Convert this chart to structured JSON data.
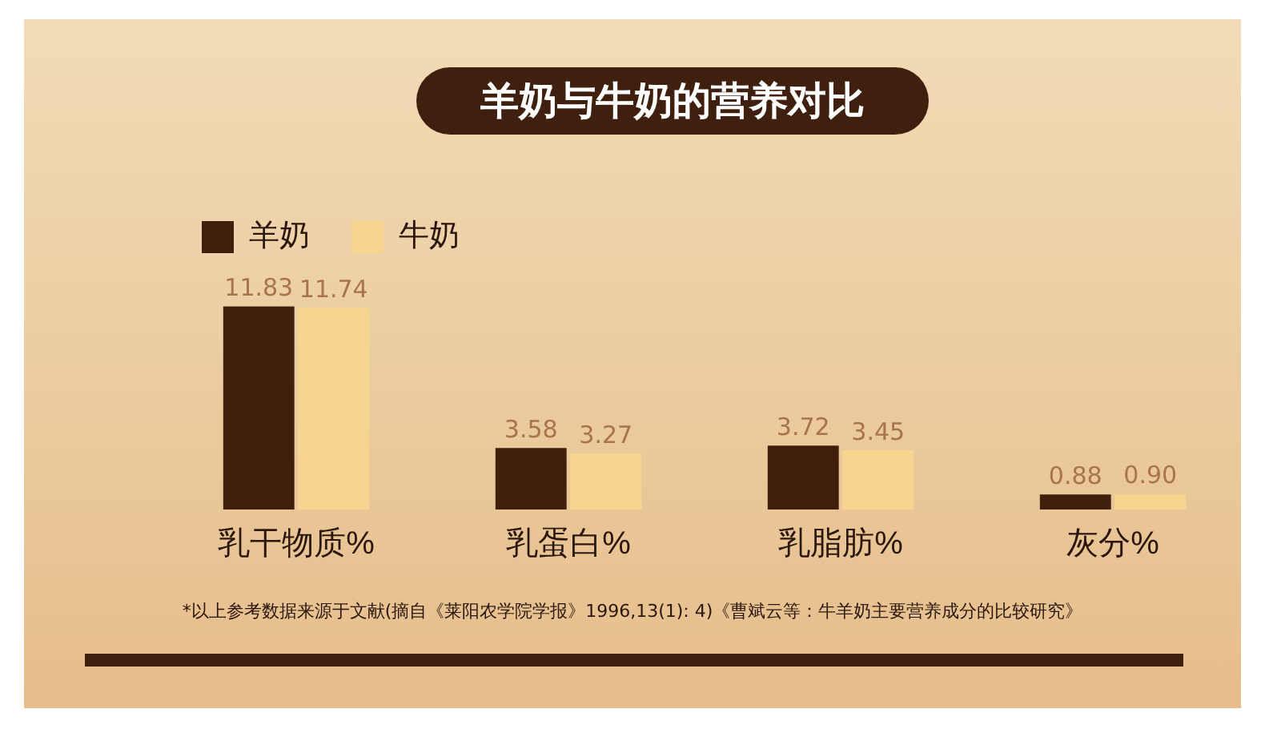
{
  "chart_data": {
    "type": "bar",
    "title": "羊奶与牛奶的营养对比",
    "categories": [
      "乳干物质%",
      "乳蛋白%",
      "乳脂肪%",
      "灰分%"
    ],
    "series": [
      {
        "name": "羊奶",
        "color": "#40200c",
        "values": [
          11.83,
          3.58,
          3.72,
          0.88
        ],
        "value_labels": [
          "11.83",
          "3.58",
          "3.72",
          "0.88"
        ]
      },
      {
        "name": "牛奶",
        "color": "#f6d68e",
        "values": [
          11.74,
          3.27,
          3.45,
          0.9
        ],
        "value_labels": [
          "11.74",
          "3.27",
          "3.45",
          "0.90"
        ]
      }
    ],
    "legend": "top left",
    "grid": false,
    "annotations": [
      "*以上参考数据来源于文献(摘自《莱阳农学院学报》1996,13(1): 4)《曹斌云等：牛羊奶主要营养成分的比较研究》"
    ]
  }
}
